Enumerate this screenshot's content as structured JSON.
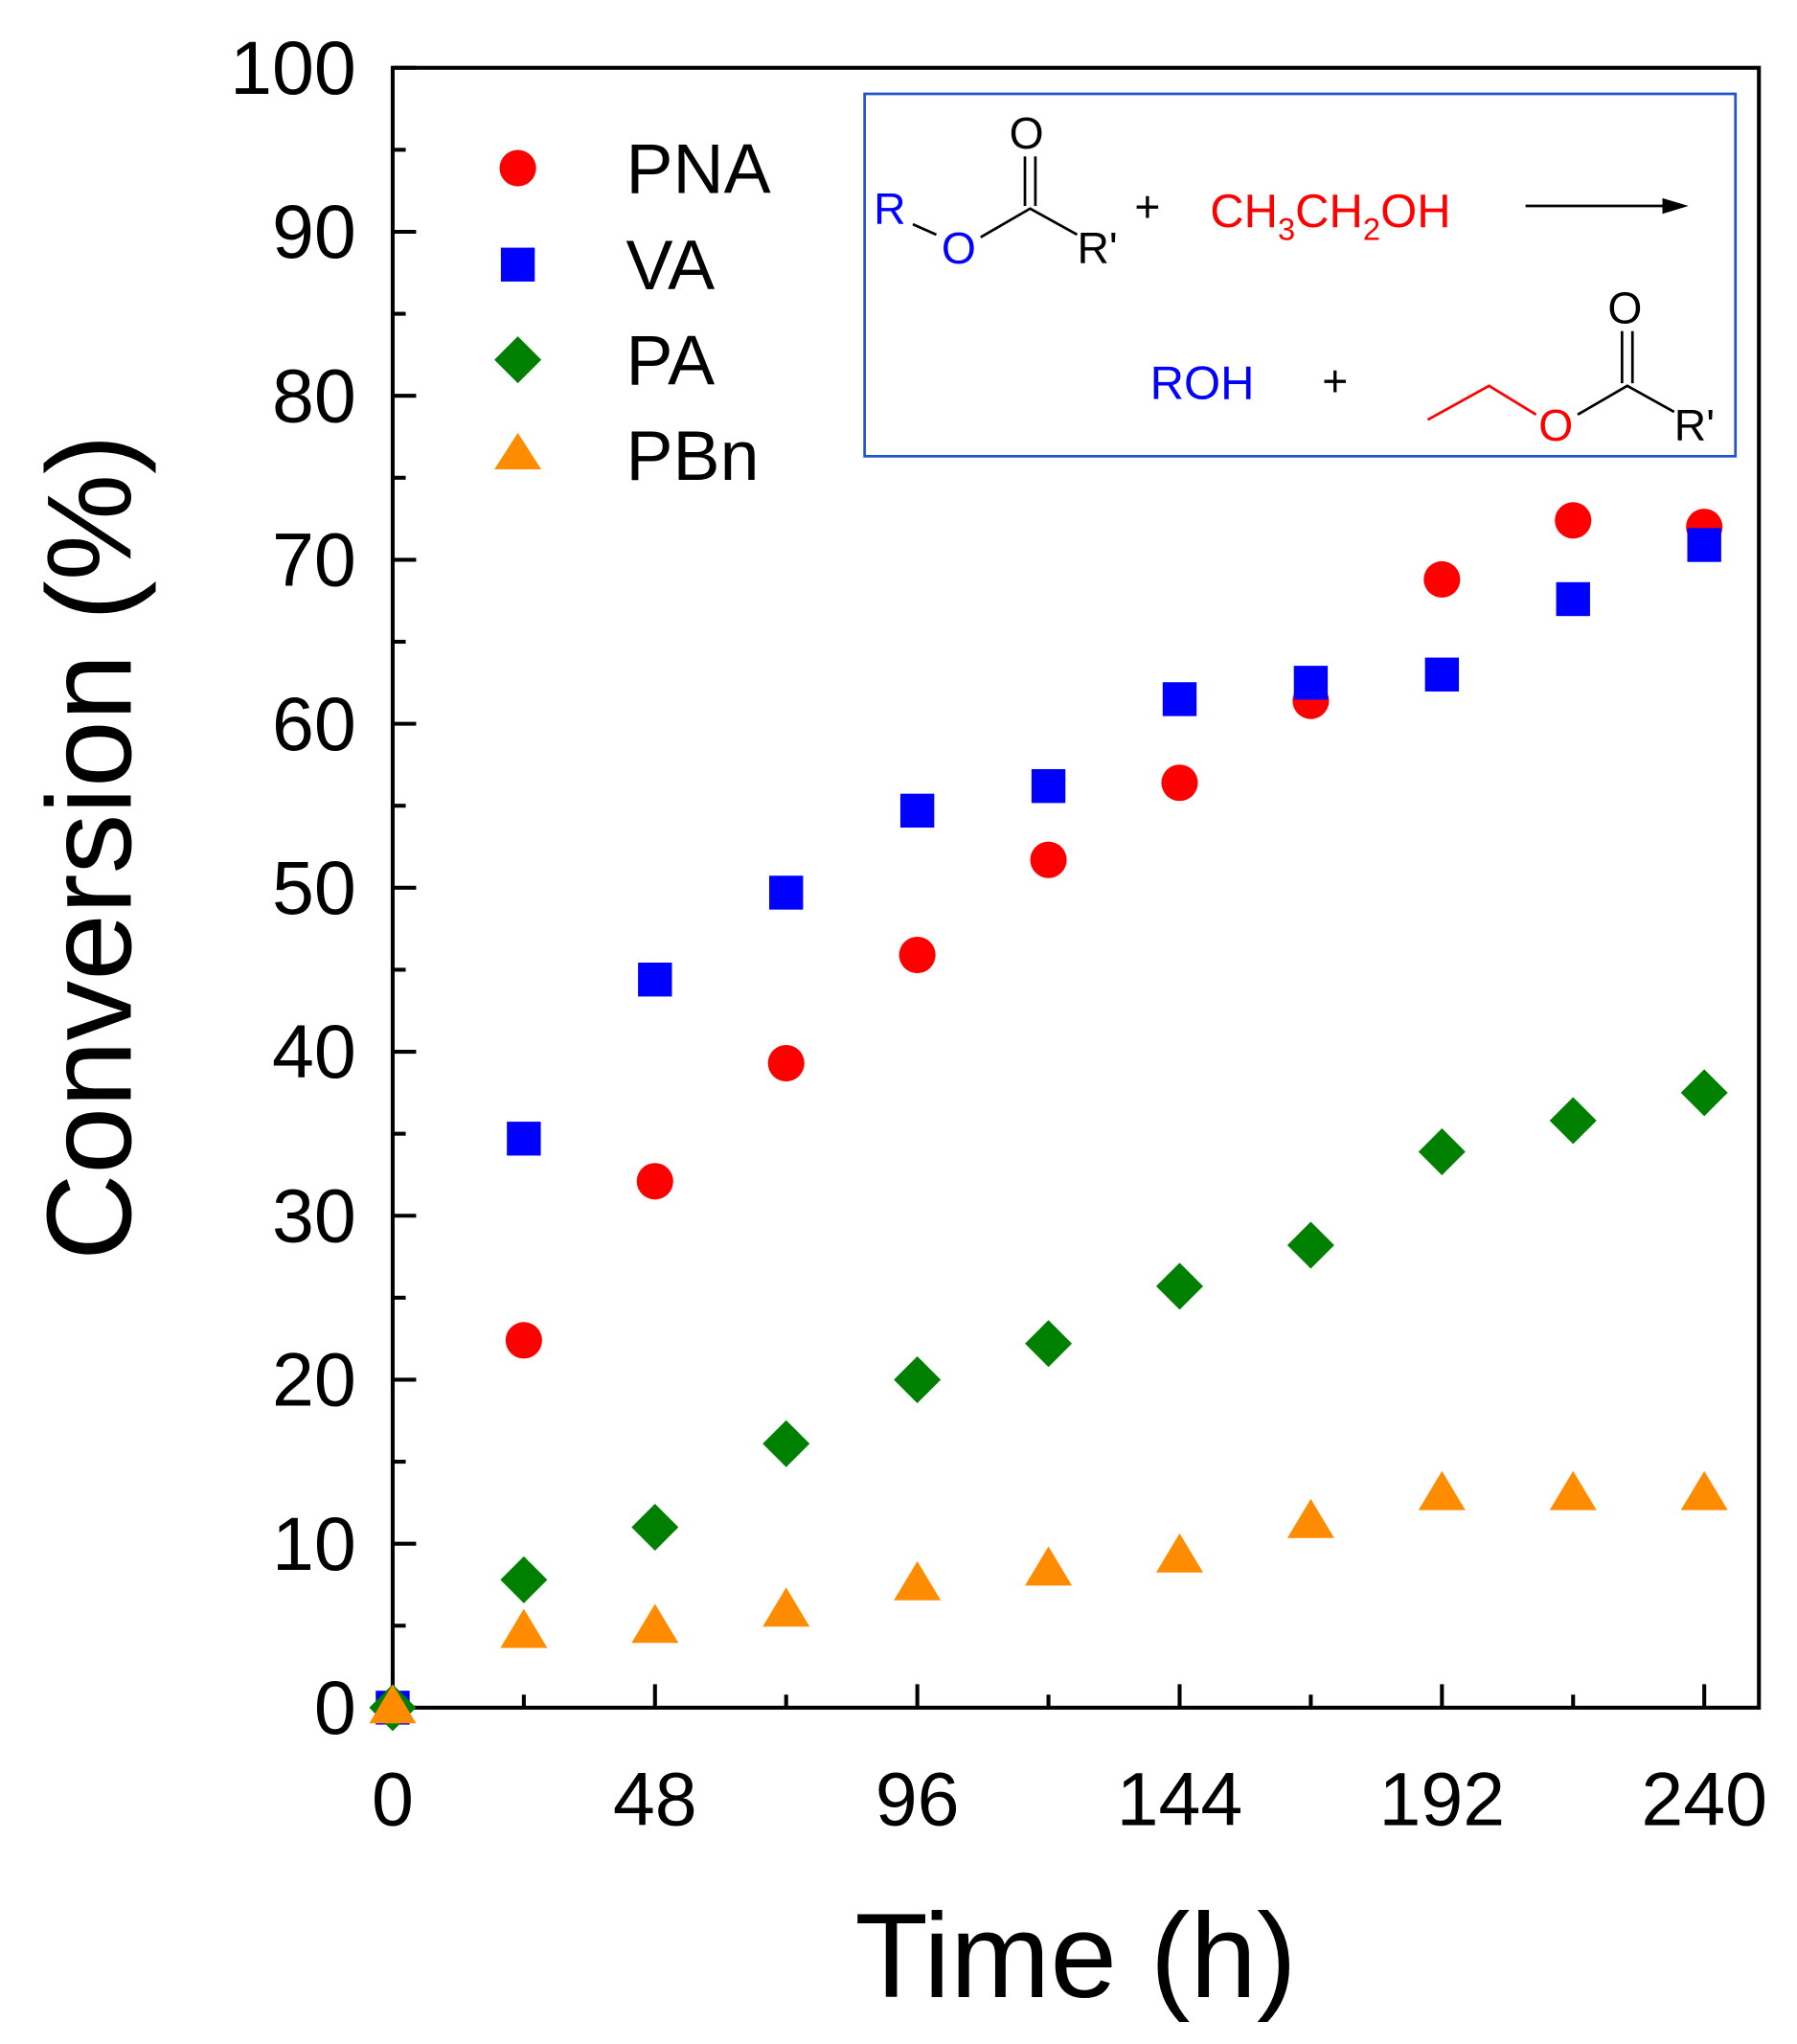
{
  "chart_data": {
    "type": "scatter",
    "title": "",
    "xlabel": "Time (h)",
    "ylabel": "Conversion (%)",
    "xlim": [
      0,
      250
    ],
    "ylim": [
      0,
      100
    ],
    "xticks": [
      0,
      48,
      96,
      144,
      192,
      240
    ],
    "yticks": [
      0,
      10,
      20,
      30,
      40,
      50,
      60,
      70,
      80,
      90,
      100
    ],
    "grid": false,
    "legend_position": "top-left",
    "x": [
      0,
      24,
      48,
      72,
      96,
      120,
      144,
      168,
      192,
      216,
      240
    ],
    "series": [
      {
        "name": "PNA",
        "marker": "circle",
        "color": "#ff0000",
        "values": [
          0,
          22.4,
          32.1,
          39.3,
          45.9,
          51.7,
          56.4,
          61.4,
          68.8,
          72.4,
          72.0
        ]
      },
      {
        "name": "VA",
        "marker": "square",
        "color": "#0000ff",
        "values": [
          0,
          34.7,
          44.4,
          49.7,
          54.7,
          56.2,
          61.5,
          62.5,
          63.0,
          67.6,
          70.9
        ]
      },
      {
        "name": "PA",
        "marker": "diamond",
        "color": "#008000",
        "values": [
          0,
          7.8,
          11.0,
          16.1,
          20.0,
          22.2,
          25.7,
          28.2,
          33.9,
          35.8,
          37.5
        ]
      },
      {
        "name": "PBn",
        "marker": "triangle",
        "color": "#ff8c00",
        "values": [
          0,
          4.6,
          4.9,
          5.9,
          7.5,
          8.4,
          9.2,
          11.3,
          13.0,
          13.0,
          13.0
        ]
      }
    ],
    "inset_scheme": {
      "reactant_R": "R",
      "reactant_O": "O",
      "reactant_carbonyl_O": "O",
      "reactant_R2": "R'",
      "plus": "+",
      "ethanol_parts": [
        "CH",
        "3",
        "CH",
        "2",
        "OH"
      ],
      "product_alcohol": "ROH",
      "product_plus": "+",
      "product_carbonyl_O": "O",
      "product_O": "O",
      "product_R2": "R'",
      "colors": {
        "blue": "#0000ff",
        "red": "#ff0000",
        "box": "#2255cc"
      }
    }
  }
}
